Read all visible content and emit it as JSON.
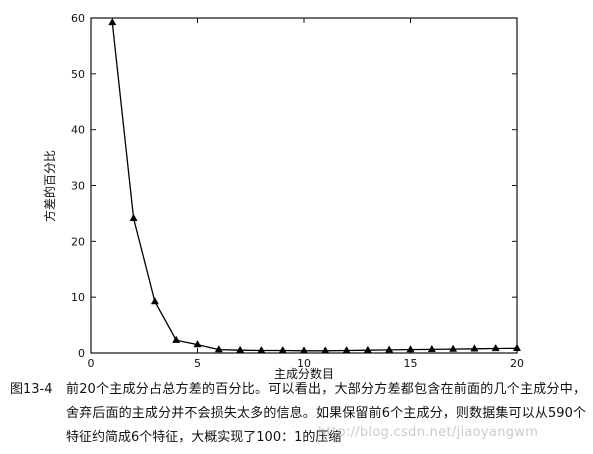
{
  "chart_data": {
    "type": "line",
    "xlabel": "主成分数目",
    "ylabel": "方差的百分比",
    "xlim": [
      0,
      20
    ],
    "ylim": [
      0,
      60
    ],
    "x_ticks": [
      "0",
      "5",
      "10",
      "15",
      "20"
    ],
    "y_ticks": [
      "0",
      "10",
      "20",
      "30",
      "40",
      "50",
      "60"
    ],
    "marker": "triangle",
    "line_color": "#000000",
    "grid": false,
    "series": [
      {
        "x": [
          1,
          2,
          3,
          4,
          5,
          6,
          7,
          8,
          9,
          10,
          11,
          12,
          13,
          14,
          15,
          16,
          17,
          18,
          19,
          20
        ],
        "values": [
          59.2,
          24.1,
          9.2,
          2.3,
          1.5,
          0.6,
          0.5,
          0.45,
          0.45,
          0.4,
          0.4,
          0.45,
          0.5,
          0.55,
          0.6,
          0.65,
          0.7,
          0.75,
          0.8,
          0.85
        ]
      }
    ]
  },
  "caption": {
    "number": "图13-4",
    "text": "前20个主成分占总方差的百分比。可以看出，大部分方差都包含在前面的几个主成分中，舍弃后面的主成分并不会损失太多的信息。如果保留前6个主成分，则数据集可以从590个特征约简成6个特征，大概实现了100：1的压缩"
  },
  "watermark": "http://blog.csdn.net/jiaoyangwm"
}
